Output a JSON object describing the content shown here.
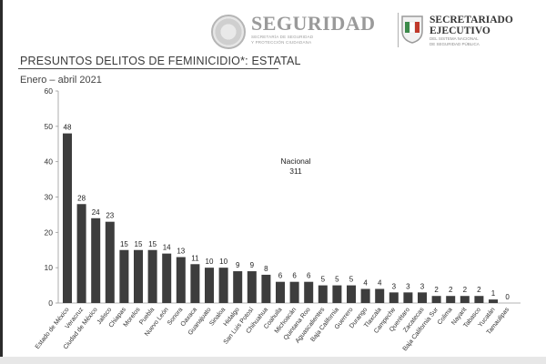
{
  "header": {
    "seguridad_title": "SEGURIDAD",
    "seguridad_sub1": "SECRETARÍA DE SEGURIDAD",
    "seguridad_sub2": "Y PROTECCIÓN CIUDADANA",
    "sesnsp_title1": "SECRETARIADO",
    "sesnsp_title2": "EJECUTIVO",
    "sesnsp_sub1": "DEL SISTEMA NACIONAL",
    "sesnsp_sub2": "DE SEGURIDAD PÚBLICA"
  },
  "colors": {
    "bar": "#3d3d3d",
    "axis": "#9a9a9a",
    "grid": "#e3e3e3"
  },
  "chart_data": {
    "type": "bar",
    "title": "PRESUNTOS DELITOS DE FEMINICIDIO*: ESTATAL",
    "subtitle": "Enero – abril 2021",
    "annotation_label": "Nacional",
    "annotation_value": "311",
    "ylim": [
      0,
      60
    ],
    "yticks": [
      0,
      10,
      20,
      30,
      40,
      50,
      60
    ],
    "grid": false,
    "categories": [
      "Estado de México",
      "Veracruz",
      "Ciudad de México",
      "Jalisco",
      "Chiapas",
      "Morelos",
      "Puebla",
      "Nuevo León",
      "Sonora",
      "Oaxaca",
      "Guanajuato",
      "Sinaloa",
      "Hidalgo",
      "San Luis Potosí",
      "Chihuahua",
      "Coahuila",
      "Michoacán",
      "Quintana Roo",
      "Aguascalientes",
      "Baja California",
      "Guerrero",
      "Durango",
      "Tlaxcala",
      "Campeche",
      "Querétaro",
      "Zacatecas",
      "Baja California Sur",
      "Colima",
      "Nayarit",
      "Tabasco",
      "Yucatán",
      "Tamaulipas"
    ],
    "values": [
      48,
      28,
      24,
      23,
      15,
      15,
      15,
      14,
      13,
      11,
      10,
      10,
      9,
      9,
      8,
      6,
      6,
      6,
      5,
      5,
      5,
      4,
      4,
      3,
      3,
      3,
      2,
      2,
      2,
      2,
      1,
      0
    ]
  }
}
